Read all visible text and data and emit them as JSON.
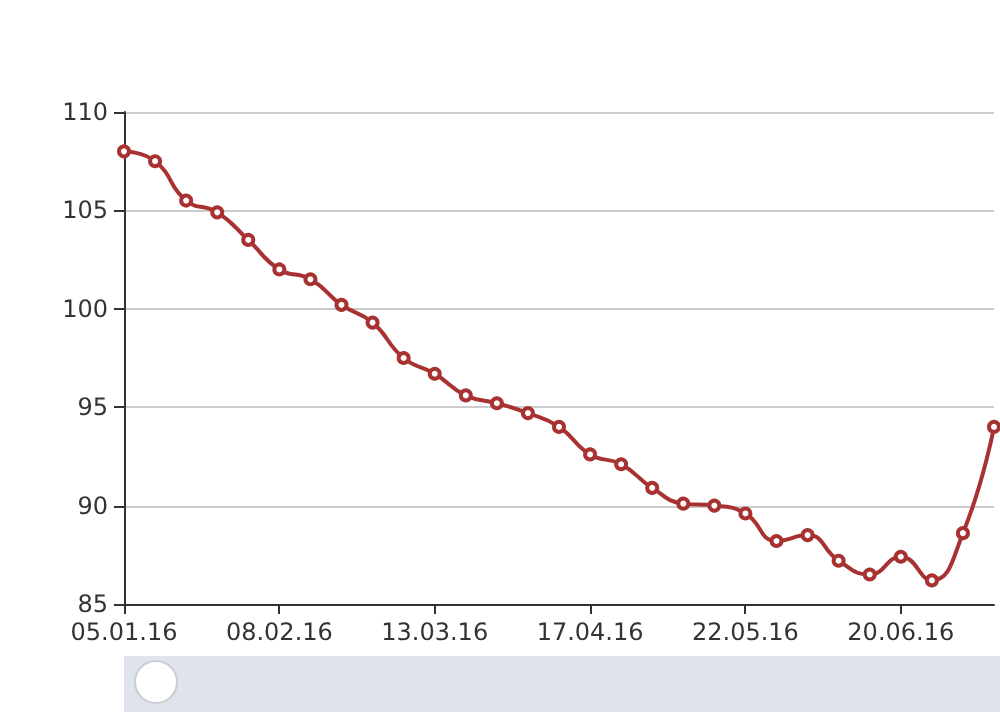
{
  "chart_data": {
    "type": "line",
    "categories": [
      "05.01.16",
      null,
      null,
      null,
      null,
      "08.02.16",
      null,
      null,
      null,
      null,
      "13.03.16",
      null,
      null,
      null,
      null,
      "17.04.16",
      null,
      null,
      null,
      null,
      "22.05.16",
      null,
      null,
      null,
      null,
      "20.06.16",
      null,
      null,
      null
    ],
    "series": [
      {
        "color": "#a83232",
        "values": [
          108.0,
          107.5,
          105.5,
          104.9,
          103.5,
          102.0,
          101.5,
          100.2,
          99.3,
          97.5,
          96.7,
          95.6,
          95.2,
          94.7,
          94.0,
          92.6,
          92.1,
          90.9,
          90.1,
          90.0,
          89.6,
          88.2,
          88.5,
          87.2,
          86.5,
          87.4,
          86.2,
          88.6,
          94.0
        ]
      }
    ],
    "ylim": [
      85,
      110
    ],
    "yticks": [
      85,
      90,
      95,
      100,
      105,
      110
    ],
    "grid": "y",
    "marker": "circle",
    "line_style": "solid"
  }
}
